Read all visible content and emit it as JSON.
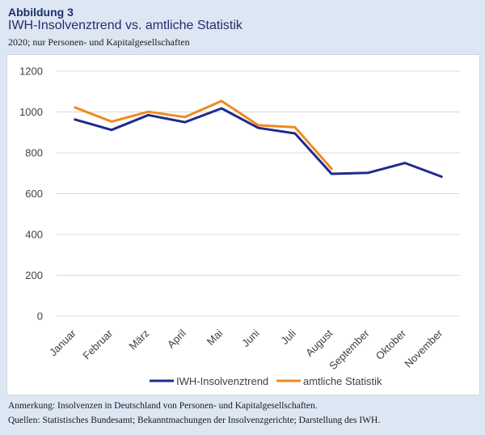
{
  "header": {
    "label": "Abbildung 3",
    "title": "IWH-Insolvenztrend vs. amtliche Statistik",
    "subtitle": "2020; nur Personen- und Kapitalgesellschaften"
  },
  "footer": {
    "note": "Anmerkung: Insolvenzen in Deutschland von Personen- und Kapitalgesellschaften.",
    "sources": "Quellen: Statistisches Bundesamt; Bekanntmachungen der Insolvenzgerichte; Darstellung des IWH."
  },
  "colors": {
    "iwh": "#1f2b8c",
    "amtlich": "#f08a1d",
    "grid": "#d9d9d9",
    "text": "#404040"
  },
  "chart_data": {
    "type": "line",
    "title": "IWH-Insolvenztrend vs. amtliche Statistik",
    "xlabel": "",
    "ylabel": "",
    "categories": [
      "Januar",
      "Februar",
      "März",
      "April",
      "Mai",
      "Juni",
      "Juli",
      "August",
      "September",
      "Oktober",
      "November"
    ],
    "ylim": [
      0,
      1200
    ],
    "yticks": [
      0,
      200,
      400,
      600,
      800,
      1000,
      1200
    ],
    "grid": true,
    "legend": "bottom",
    "series": [
      {
        "name": "IWH-Insolvenztrend",
        "color": "#1f2b8c",
        "values": [
          963,
          912,
          985,
          950,
          1018,
          922,
          895,
          697,
          702,
          750,
          683
        ]
      },
      {
        "name": "amtliche Statistik",
        "color": "#f08a1d",
        "values": [
          1022,
          953,
          1001,
          975,
          1054,
          935,
          925,
          722,
          null,
          null,
          null
        ]
      }
    ]
  }
}
